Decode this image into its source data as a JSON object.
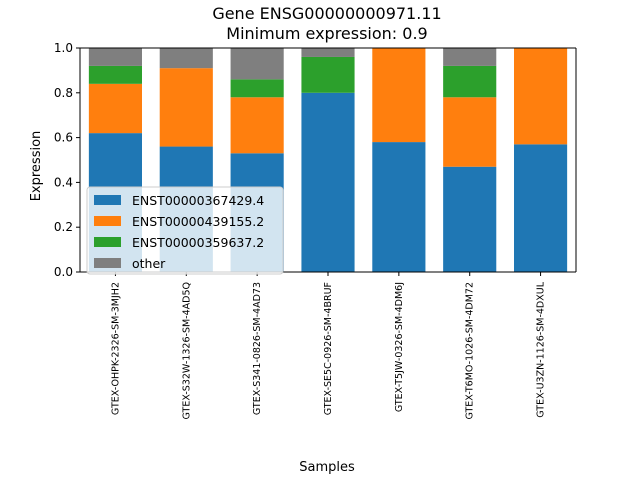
{
  "chart_data": {
    "type": "bar",
    "stacked": true,
    "title": "Gene ENSG00000000971.11",
    "subtitle": "Minimum expression: 0.9",
    "xlabel": "Samples",
    "ylabel": "Expression",
    "ylim": [
      0,
      1.0
    ],
    "yticks": [
      "0.0",
      "0.2",
      "0.4",
      "0.6",
      "0.8",
      "1.0"
    ],
    "ytick_values": [
      0,
      0.2,
      0.4,
      0.6,
      0.8,
      1.0
    ],
    "grid": false,
    "legend_position": "lower-left",
    "categories": [
      "GTEX-OHPK-2326-SM-3MJH2",
      "GTEX-S32W-1326-SM-4AD5Q",
      "GTEX-S341-0826-SM-4AD73",
      "GTEX-SE5C-0926-SM-4BRUF",
      "GTEX-T5JW-0326-SM-4DM6J",
      "GTEX-T6MO-1026-SM-4DM72",
      "GTEX-U3ZN-1126-SM-4DXUL"
    ],
    "series": [
      {
        "name": "ENST00000367429.4",
        "color": "#1f77b4",
        "values": [
          0.62,
          0.56,
          0.53,
          0.8,
          0.58,
          0.47,
          0.57
        ]
      },
      {
        "name": "ENST00000439155.2",
        "color": "#ff7f0e",
        "values": [
          0.22,
          0.35,
          0.25,
          0.0,
          0.42,
          0.31,
          0.43
        ]
      },
      {
        "name": "ENST00000359637.2",
        "color": "#2ca02c",
        "values": [
          0.08,
          0.0,
          0.08,
          0.16,
          0.0,
          0.14,
          0.0
        ]
      },
      {
        "name": "other",
        "color": "#7f7f7f",
        "values": [
          0.08,
          0.09,
          0.14,
          0.04,
          0.0,
          0.08,
          0.0
        ]
      }
    ]
  }
}
